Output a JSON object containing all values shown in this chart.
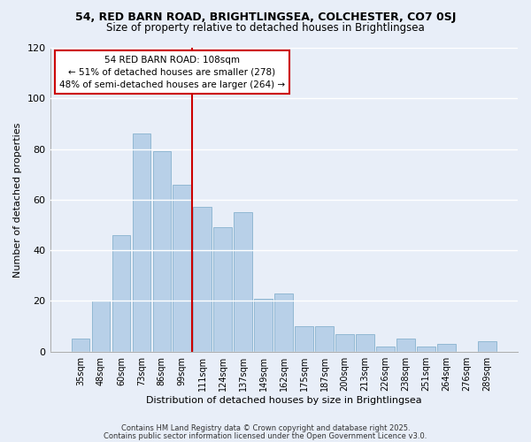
{
  "title_line1": "54, RED BARN ROAD, BRIGHTLINGSEA, COLCHESTER, CO7 0SJ",
  "title_line2": "Size of property relative to detached houses in Brightlingsea",
  "xlabel": "Distribution of detached houses by size in Brightlingsea",
  "ylabel": "Number of detached properties",
  "categories": [
    "35sqm",
    "48sqm",
    "60sqm",
    "73sqm",
    "86sqm",
    "99sqm",
    "111sqm",
    "124sqm",
    "137sqm",
    "149sqm",
    "162sqm",
    "175sqm",
    "187sqm",
    "200sqm",
    "213sqm",
    "226sqm",
    "238sqm",
    "251sqm",
    "264sqm",
    "276sqm",
    "289sqm"
  ],
  "values": [
    5,
    20,
    46,
    86,
    79,
    66,
    57,
    49,
    55,
    21,
    23,
    10,
    10,
    7,
    7,
    2,
    5,
    2,
    3,
    0,
    4
  ],
  "bar_color": "#b8d0e8",
  "bar_edge_color": "#7aaac8",
  "background_color": "#e8eef8",
  "grid_color": "#ffffff",
  "annotation_box_text1": "54 RED BARN ROAD: 108sqm",
  "annotation_box_text2": "← 51% of detached houses are smaller (278)",
  "annotation_box_text3": "48% of semi-detached houses are larger (264) →",
  "ylim": [
    0,
    120
  ],
  "yticks": [
    0,
    20,
    40,
    60,
    80,
    100,
    120
  ],
  "footer1": "Contains HM Land Registry data © Crown copyright and database right 2025.",
  "footer2": "Contains public sector information licensed under the Open Government Licence v3.0.",
  "red_line_color": "#cc0000",
  "annotation_box_edgecolor": "#cc0000",
  "annotation_box_facecolor": "#ffffff"
}
